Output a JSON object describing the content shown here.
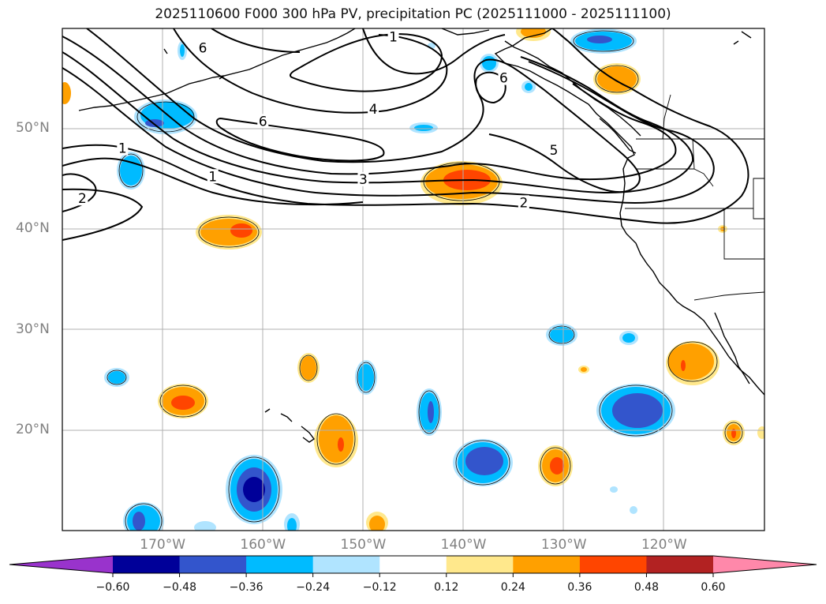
{
  "title": "2025110600 F000 300 hPa PV, precipitation PC (2025111000 - 2025111100)",
  "map": {
    "extent": {
      "lon_min": -180,
      "lon_max": -110,
      "lat_min": 10,
      "lat_max": 60
    },
    "lat_labels": [
      {
        "lat": 50,
        "label": "50°N"
      },
      {
        "lat": 40,
        "label": "40°N"
      },
      {
        "lat": 30,
        "label": "30°N"
      },
      {
        "lat": 20,
        "label": "20°N"
      }
    ],
    "lon_labels": [
      {
        "lon": -170,
        "label": "170°W"
      },
      {
        "lon": -160,
        "label": "160°W"
      },
      {
        "lon": -150,
        "label": "150°W"
      },
      {
        "lon": -140,
        "label": "140°W"
      },
      {
        "lon": -130,
        "label": "130°W"
      },
      {
        "lon": -120,
        "label": "120°W"
      }
    ],
    "pv_contour_labels": [
      {
        "text": "6",
        "lon": -166,
        "lat": 58.0
      },
      {
        "text": "1",
        "lon": -147,
        "lat": 59.1
      },
      {
        "text": "6",
        "lon": -136,
        "lat": 55.0
      },
      {
        "text": "4",
        "lon": -149,
        "lat": 51.9
      },
      {
        "text": "6",
        "lon": -160,
        "lat": 50.7
      },
      {
        "text": "1",
        "lon": -174,
        "lat": 48.0
      },
      {
        "text": "5",
        "lon": -131,
        "lat": 47.8
      },
      {
        "text": "1",
        "lon": -165,
        "lat": 45.2
      },
      {
        "text": "3",
        "lon": -150,
        "lat": 44.9
      },
      {
        "text": "2",
        "lon": -134,
        "lat": 42.6
      },
      {
        "text": "2",
        "lon": -178,
        "lat": 43.0
      }
    ]
  },
  "colorbar": {
    "levels": [
      -0.6,
      -0.48,
      -0.36,
      -0.24,
      -0.12,
      0.12,
      0.24,
      0.36,
      0.48,
      0.6
    ],
    "labels": [
      "−0.60",
      "−0.48",
      "−0.36",
      "−0.24",
      "−0.12",
      "0.12",
      "0.24",
      "0.36",
      "0.48",
      "0.60"
    ],
    "colors": [
      "#9933cc",
      "#000099",
      "#3355cc",
      "#00bbff",
      "#b0e4ff",
      "#ffffff",
      "#ffe88c",
      "#ffa000",
      "#ff4500",
      "#b22222",
      "#ff88aa"
    ]
  }
}
